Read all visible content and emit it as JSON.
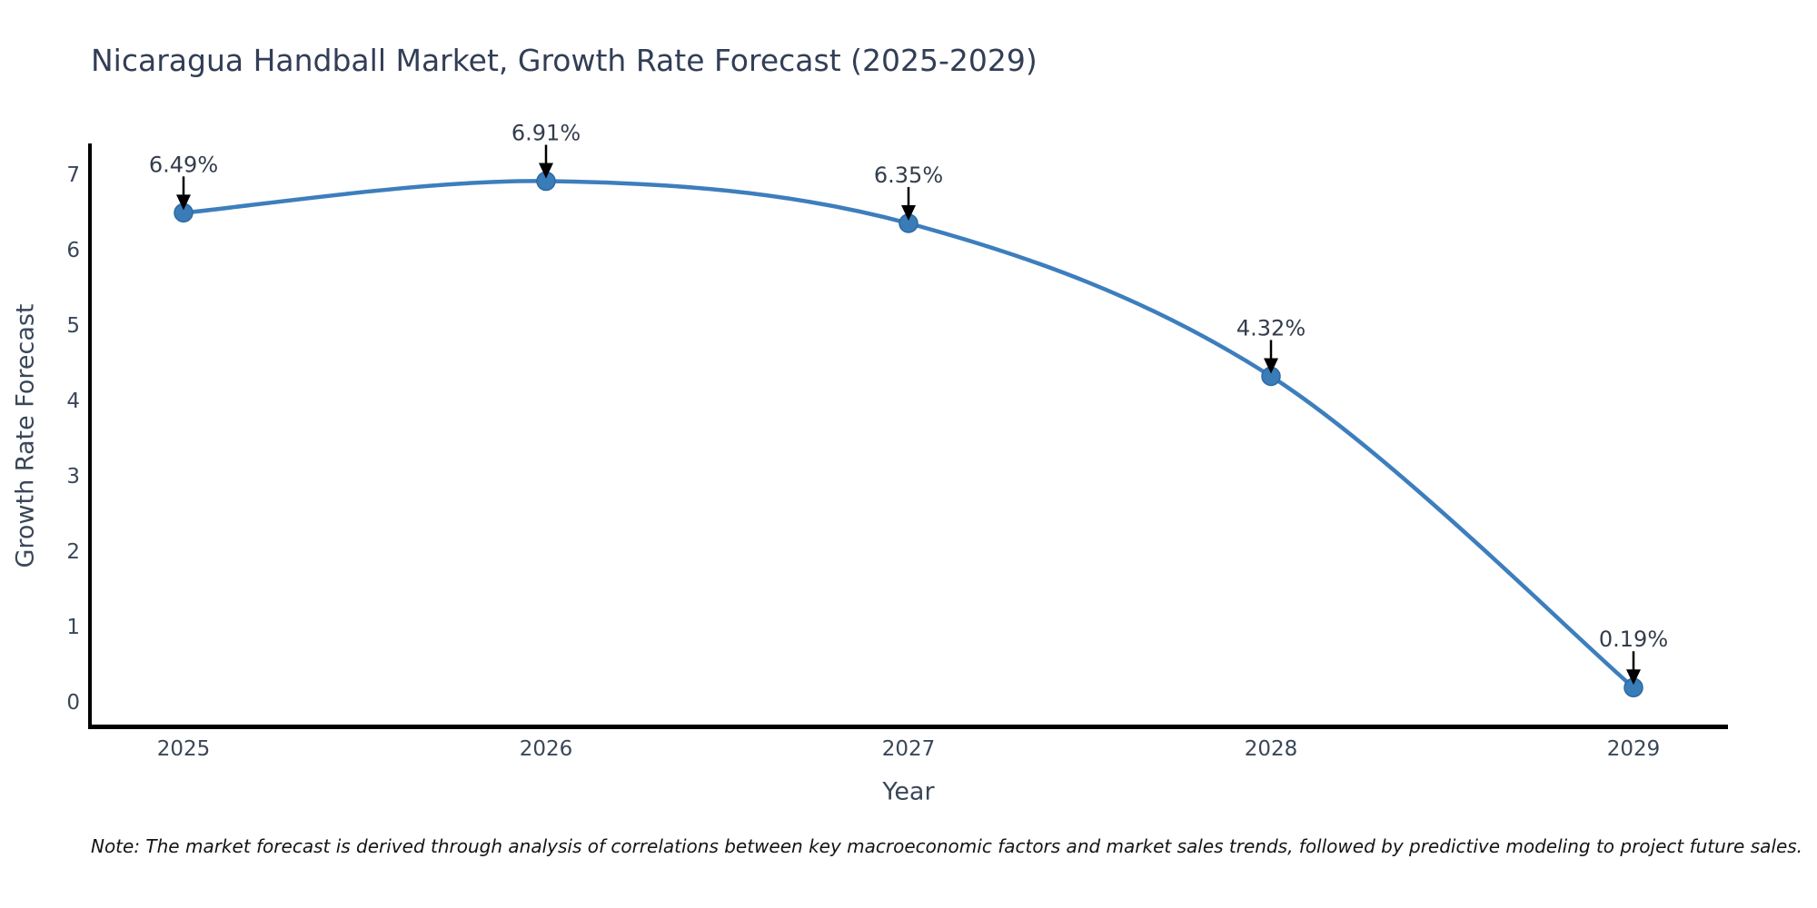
{
  "figure": {
    "note": "Note: The market forecast is derived through analysis of correlations between key macroeconomic factors and market sales trends, followed by predictive modeling to project future sales."
  },
  "chart_data": {
    "type": "line",
    "title": "Nicaragua Handball Market, Growth Rate Forecast (2025-2029)",
    "xlabel": "Year",
    "ylabel": "Growth Rate Forecast",
    "categories": [
      "2025",
      "2026",
      "2027",
      "2028",
      "2029"
    ],
    "values": [
      6.49,
      6.91,
      6.35,
      4.32,
      0.19
    ],
    "point_labels": [
      "6.49%",
      "6.91%",
      "6.35%",
      "4.32%",
      "0.19%"
    ],
    "yticks": [
      0,
      1,
      2,
      3,
      4,
      5,
      6,
      7
    ],
    "ylim": [
      -0.33,
      7.53
    ],
    "grid": false,
    "legend": "none",
    "line_style": "smooth",
    "marker": "circle",
    "annotations": "value labels with downward black arrows above each point",
    "colors": {
      "line": "#3d7ebd",
      "marker_fill": "#3a7cb8",
      "marker_edge": "#2c6aa3",
      "arrow": "#000000",
      "spine": "#000000",
      "title_text": "#323e56",
      "axis_text": "#3a4759",
      "annotation_text": "#343d4c",
      "note_text": "#141414",
      "background": "#ffffff"
    }
  }
}
